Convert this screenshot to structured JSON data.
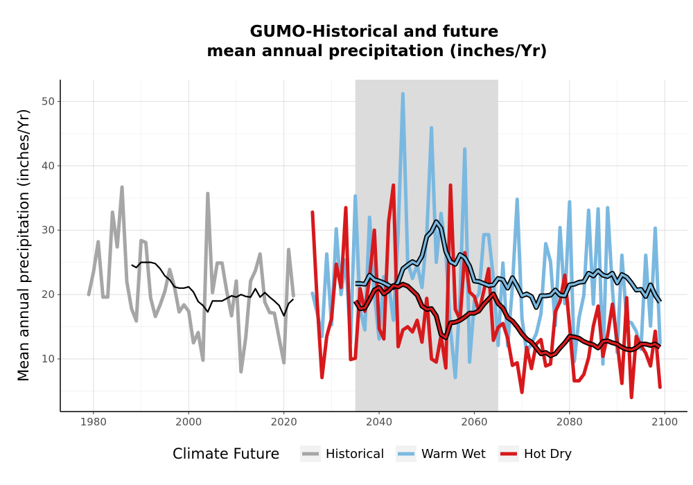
{
  "chart_data": {
    "type": "line",
    "title_line1": "GUMO-Historical and future",
    "title_line2": "mean annual precipitation (inches/Yr)",
    "xlabel": "",
    "ylabel": "Mean annual precipitation (inches/Yr)",
    "xlim": [
      1973,
      2105
    ],
    "ylim": [
      1,
      54
    ],
    "x_ticks": [
      1980,
      2000,
      2020,
      2040,
      2060,
      2080,
      2100
    ],
    "y_ticks": [
      10,
      20,
      30,
      40,
      50
    ],
    "grid": true,
    "shaded_period": [
      2035,
      2065
    ],
    "legend": {
      "title": "Climate Future",
      "position": "bottom",
      "entries": [
        {
          "label": "Historical",
          "color": "#a6a6a6"
        },
        {
          "label": "Warm Wet",
          "color": "#7ab8e0"
        },
        {
          "label": "Hot Dry",
          "color": "#d7191c"
        }
      ]
    },
    "series": [
      {
        "name": "Historical",
        "color": "#a6a6a6",
        "x": [
          1979,
          1980,
          1981,
          1982,
          1983,
          1984,
          1985,
          1986,
          1987,
          1988,
          1989,
          1990,
          1991,
          1992,
          1993,
          1994,
          1995,
          1996,
          1997,
          1998,
          1999,
          2000,
          2001,
          2002,
          2003,
          2004,
          2005,
          2006,
          2007,
          2008,
          2009,
          2010,
          2011,
          2012,
          2013,
          2014,
          2015,
          2016,
          2017,
          2018,
          2019,
          2020,
          2021,
          2022
        ],
        "values": [
          20,
          23.5,
          28.2,
          19.6,
          19.6,
          32.8,
          27.4,
          36.7,
          22,
          17.8,
          15.9,
          28.4,
          28.1,
          19.5,
          16.6,
          18.4,
          20.5,
          23.9,
          21.2,
          17.3,
          18.4,
          17.4,
          12.5,
          14.1,
          9.8,
          35.7,
          20.3,
          24.9,
          24.9,
          20.5,
          16.7,
          22.1,
          8,
          13.4,
          22.1,
          23.7,
          26.3,
          18.8,
          17.2,
          17.1,
          13.2,
          9.4,
          27,
          19.8
        ]
      },
      {
        "name": "Historical smoothed",
        "color": "#000000",
        "x": [
          1988,
          1989,
          1990,
          1991,
          1992,
          1993,
          1994,
          1995,
          1996,
          1997,
          1998,
          1999,
          2000,
          2001,
          2002,
          2003,
          2004,
          2005,
          2006,
          2007,
          2008,
          2009,
          2010,
          2011,
          2012,
          2013,
          2014,
          2015,
          2016,
          2017,
          2018,
          2019,
          2020,
          2021,
          2022
        ],
        "values": [
          24.6,
          24.2,
          25,
          25,
          25,
          24.8,
          24,
          22.9,
          22.3,
          21.2,
          21,
          21,
          21.2,
          20.4,
          18.9,
          18.3,
          17.3,
          19,
          19,
          19,
          19.4,
          19.8,
          19.6,
          20,
          19.7,
          19.6,
          20.9,
          19.6,
          20.3,
          19.6,
          19,
          18.3,
          16.7,
          18.6,
          19.3
        ]
      },
      {
        "name": "Warm Wet",
        "color": "#7ab8e0",
        "x": [
          2026,
          2027,
          2028,
          2029,
          2030,
          2031,
          2032,
          2033,
          2034,
          2035,
          2036,
          2037,
          2038,
          2039,
          2040,
          2041,
          2042,
          2043,
          2044,
          2045,
          2046,
          2047,
          2048,
          2049,
          2050,
          2051,
          2052,
          2053,
          2054,
          2055,
          2056,
          2057,
          2058,
          2059,
          2060,
          2061,
          2062,
          2063,
          2064,
          2065,
          2066,
          2067,
          2068,
          2069,
          2070,
          2071,
          2072,
          2073,
          2074,
          2075,
          2076,
          2077,
          2078,
          2079,
          2080,
          2081,
          2082,
          2083,
          2084,
          2085,
          2086,
          2087,
          2088,
          2089,
          2090,
          2091,
          2092,
          2093,
          2094,
          2095,
          2096,
          2097,
          2098,
          2099
        ],
        "values": [
          20.2,
          17.1,
          13.5,
          26.3,
          15.3,
          30.2,
          20,
          25.4,
          12.4,
          35.3,
          17.7,
          14.5,
          32,
          20,
          13.1,
          22.8,
          21.5,
          16,
          29.5,
          51.2,
          25,
          22.5,
          24.6,
          21.1,
          29.2,
          45.9,
          25,
          32.6,
          26.6,
          14.5,
          7.1,
          19.8,
          42.6,
          9.5,
          19,
          20.2,
          29.3,
          29.3,
          22.4,
          12.1,
          24.9,
          12,
          21.2,
          34.8,
          16.3,
          11,
          12.4,
          13.9,
          17,
          27.9,
          25.1,
          15.2,
          30.4,
          18.6,
          34.4,
          9.6,
          16.4,
          19.9,
          33.1,
          18.5,
          33.3,
          9.2,
          33.5,
          20.9,
          11,
          26.1,
          15.9,
          15.6,
          14.3,
          11.5,
          26.1,
          15.1,
          30.3,
          12.5
        ]
      },
      {
        "name": "Warm Wet smoothed",
        "color": "#000000",
        "x": [
          2035,
          2036,
          2037,
          2038,
          2039,
          2040,
          2041,
          2042,
          2043,
          2044,
          2045,
          2046,
          2047,
          2048,
          2049,
          2050,
          2051,
          2052,
          2053,
          2054,
          2055,
          2056,
          2057,
          2058,
          2059,
          2060,
          2061,
          2062,
          2063,
          2064,
          2065,
          2066,
          2067,
          2068,
          2069,
          2070,
          2071,
          2072,
          2073,
          2074,
          2075,
          2076,
          2077,
          2078,
          2079,
          2080,
          2081,
          2082,
          2083,
          2084,
          2085,
          2086,
          2087,
          2088,
          2089,
          2090,
          2091,
          2092,
          2093,
          2094,
          2095,
          2096,
          2097,
          2098,
          2099
        ],
        "values": [
          21.7,
          21.7,
          21.6,
          23,
          22.3,
          22.1,
          21.8,
          21.4,
          21.1,
          21.9,
          24,
          24.6,
          25.1,
          24.7,
          26,
          29,
          29.8,
          31.3,
          30.3,
          26.7,
          25.1,
          24.7,
          26.2,
          25.7,
          24.4,
          22.1,
          22,
          21.7,
          21.4,
          21.5,
          22.5,
          22.3,
          21,
          22.6,
          21.3,
          19.8,
          20.1,
          19.7,
          18,
          19.8,
          19.8,
          19.9,
          20.7,
          19.9,
          19.8,
          21.5,
          21.6,
          21.9,
          22,
          23.3,
          22.9,
          23.7,
          23,
          22.8,
          23.3,
          21.8,
          23.1,
          22.7,
          21.8,
          20.7,
          20.8,
          19.7,
          21.5,
          19.9,
          18.8
        ]
      },
      {
        "name": "Hot Dry",
        "color": "#d7191c",
        "x": [
          2026,
          2027,
          2028,
          2029,
          2030,
          2031,
          2032,
          2033,
          2034,
          2035,
          2036,
          2037,
          2038,
          2039,
          2040,
          2041,
          2042,
          2043,
          2044,
          2045,
          2046,
          2047,
          2048,
          2049,
          2050,
          2051,
          2052,
          2053,
          2054,
          2055,
          2056,
          2057,
          2058,
          2059,
          2060,
          2061,
          2062,
          2063,
          2064,
          2065,
          2066,
          2067,
          2068,
          2069,
          2070,
          2071,
          2072,
          2073,
          2074,
          2075,
          2076,
          2077,
          2078,
          2079,
          2080,
          2081,
          2082,
          2083,
          2084,
          2085,
          2086,
          2087,
          2088,
          2089,
          2090,
          2091,
          2092,
          2093,
          2094,
          2095,
          2096,
          2097,
          2098,
          2099
        ],
        "values": [
          32.8,
          18.6,
          7.1,
          13.5,
          16.3,
          24.7,
          21.1,
          33.5,
          9.9,
          10.1,
          20.9,
          17.4,
          22.7,
          30,
          14.7,
          13.1,
          31.3,
          37,
          11.9,
          14.5,
          15,
          14.2,
          16,
          12.6,
          19.4,
          10,
          9.5,
          13.6,
          8.6,
          37,
          17.7,
          16.1,
          26.5,
          20.4,
          19.7,
          17.3,
          20.6,
          24,
          12.9,
          14.9,
          15.5,
          13.2,
          9,
          9.4,
          4.8,
          11.8,
          8.5,
          12.3,
          13,
          8.9,
          9.2,
          17.3,
          18.9,
          23,
          15.1,
          6.6,
          6.6,
          7.6,
          10.2,
          15.1,
          18.2,
          10.4,
          13.7,
          18.5,
          12.6,
          6.2,
          19.5,
          4,
          13.5,
          12.1,
          10.9,
          8.9,
          14.3,
          5.6
        ]
      },
      {
        "name": "Hot Dry smoothed",
        "color": "#000000",
        "x": [
          2035,
          2036,
          2037,
          2038,
          2039,
          2040,
          2041,
          2042,
          2043,
          2044,
          2045,
          2046,
          2047,
          2048,
          2049,
          2050,
          2051,
          2052,
          2053,
          2054,
          2055,
          2056,
          2057,
          2058,
          2059,
          2060,
          2061,
          2062,
          2063,
          2064,
          2065,
          2066,
          2067,
          2068,
          2069,
          2070,
          2071,
          2072,
          2073,
          2074,
          2075,
          2076,
          2077,
          2078,
          2079,
          2080,
          2081,
          2082,
          2083,
          2084,
          2085,
          2086,
          2087,
          2088,
          2089,
          2090,
          2091,
          2092,
          2093,
          2094,
          2095,
          2096,
          2097,
          2098,
          2099
        ],
        "values": [
          19,
          17.8,
          17.9,
          19.2,
          20.7,
          21.1,
          20.1,
          20.6,
          21.4,
          21.2,
          21.6,
          21.3,
          20.6,
          19.9,
          18.2,
          17.7,
          17.8,
          16.7,
          13.8,
          13.3,
          15.6,
          15.7,
          16,
          16.5,
          17.1,
          17.1,
          17.5,
          18.5,
          19.3,
          20.1,
          18.6,
          17.9,
          16.4,
          15.9,
          15,
          13.9,
          13.1,
          12.6,
          11.7,
          10.8,
          11,
          10.5,
          10.8,
          11.7,
          12.5,
          13.5,
          13.4,
          13.2,
          12.7,
          12.4,
          12.2,
          11.7,
          12.7,
          12.8,
          12.5,
          12.3,
          11.8,
          11.5,
          11.4,
          11.7,
          12.3,
          12.3,
          12.1,
          12.3,
          11.8
        ]
      }
    ]
  }
}
